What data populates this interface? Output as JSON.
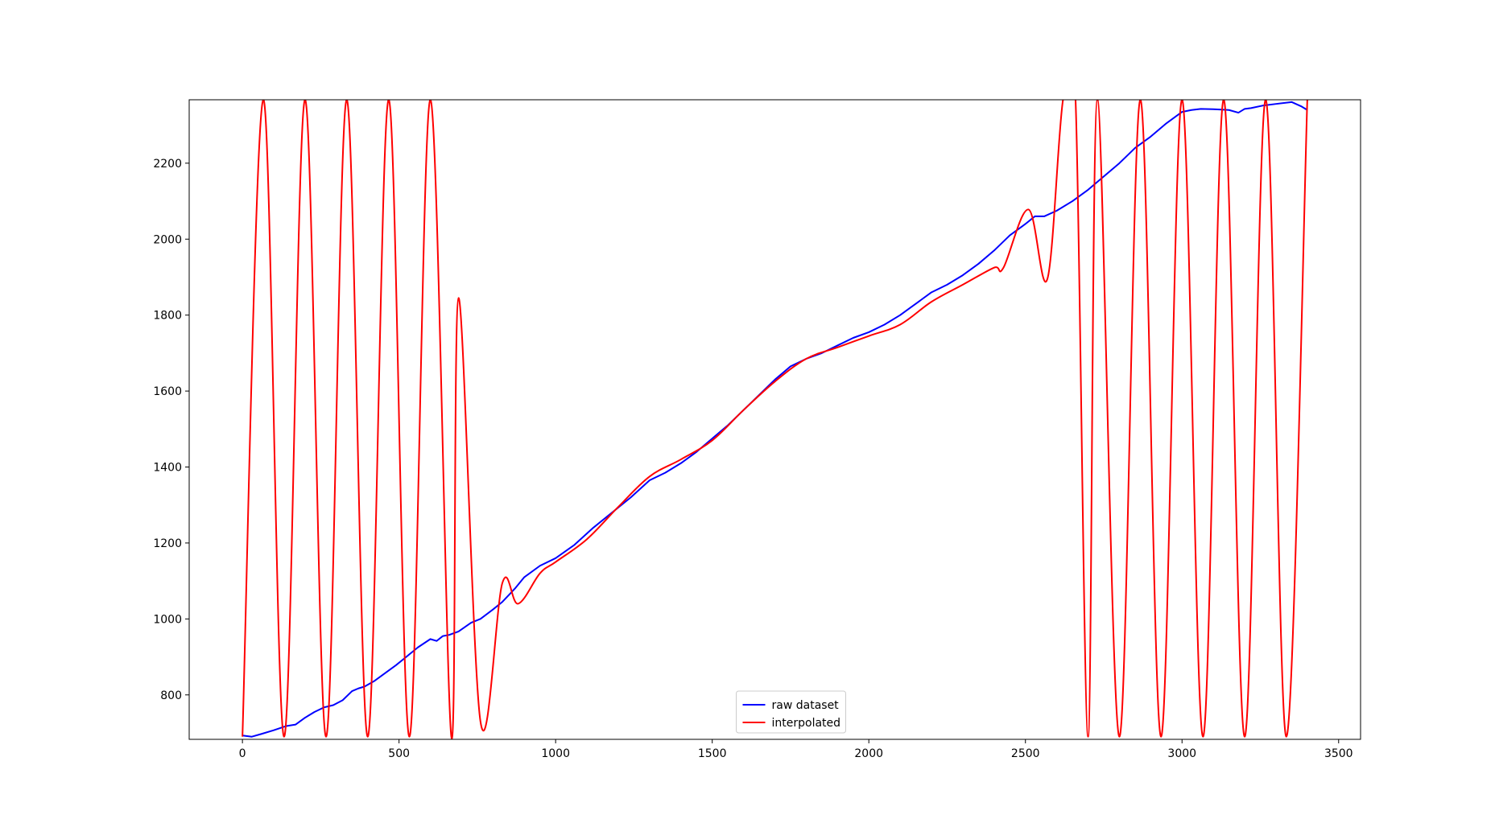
{
  "chart_data": {
    "type": "line",
    "title": "",
    "xlabel": "",
    "ylabel": "",
    "xlim": [
      -170,
      3570
    ],
    "ylim": [
      683,
      2367
    ],
    "xticks": [
      0,
      500,
      1000,
      1500,
      2000,
      2500,
      3000,
      3500
    ],
    "yticks": [
      800,
      1000,
      1200,
      1400,
      1600,
      1800,
      2000,
      2200
    ],
    "grid": false,
    "legend_position": "lower center",
    "series": [
      {
        "name": "raw dataset",
        "color": "#0000ff",
        "x": [
          0,
          30,
          60,
          100,
          140,
          170,
          200,
          230,
          260,
          290,
          320,
          350,
          370,
          390,
          420,
          460,
          490,
          520,
          560,
          600,
          620,
          640,
          660,
          690,
          730,
          760,
          800,
          830,
          870,
          900,
          950,
          1000,
          1060,
          1120,
          1180,
          1240,
          1300,
          1350,
          1400,
          1450,
          1500,
          1550,
          1600,
          1650,
          1700,
          1750,
          1800,
          1850,
          1900,
          1950,
          2000,
          2050,
          2100,
          2150,
          2200,
          2250,
          2300,
          2350,
          2400,
          2450,
          2500,
          2530,
          2560,
          2600,
          2650,
          2700,
          2750,
          2800,
          2850,
          2900,
          2950,
          3000,
          3030,
          3060,
          3100,
          3150,
          3180,
          3200,
          3220,
          3260,
          3300,
          3350,
          3380,
          3400
        ],
        "y": [
          693,
          690,
          697,
          707,
          718,
          722,
          740,
          755,
          767,
          773,
          786,
          810,
          817,
          822,
          836,
          860,
          878,
          898,
          925,
          947,
          942,
          955,
          958,
          967,
          990,
          1000,
          1025,
          1045,
          1080,
          1110,
          1140,
          1160,
          1195,
          1240,
          1280,
          1320,
          1365,
          1385,
          1410,
          1440,
          1475,
          1510,
          1550,
          1590,
          1630,
          1665,
          1685,
          1700,
          1720,
          1740,
          1755,
          1775,
          1800,
          1830,
          1860,
          1880,
          1905,
          1935,
          1970,
          2010,
          2040,
          2060,
          2060,
          2075,
          2100,
          2130,
          2165,
          2200,
          2240,
          2270,
          2305,
          2335,
          2340,
          2343,
          2342,
          2340,
          2333,
          2343,
          2345,
          2352,
          2356,
          2361,
          2350,
          2340
        ]
      },
      {
        "name": "interpolated",
        "color": "#ff0000",
        "knots_x": [
          0,
          67,
          133,
          200,
          267,
          333,
          400,
          467,
          533,
          600,
          667,
          690,
          760,
          830,
          880,
          950,
          1000,
          1100,
          1200,
          1300,
          1400,
          1500,
          1600,
          1700,
          1800,
          1900,
          2000,
          2100,
          2200,
          2300,
          2400,
          2430,
          2510,
          2570,
          2620,
          2660,
          2700,
          2730,
          2800,
          2867,
          2933,
          3000,
          3067,
          3133,
          3200,
          3267,
          3333,
          3400
        ],
        "knots_y": [
          690,
          2367,
          690,
          2367,
          690,
          2367,
          690,
          2367,
          690,
          2367,
          690,
          1845,
          730,
          1095,
          1040,
          1120,
          1150,
          1210,
          1295,
          1375,
          1420,
          1470,
          1550,
          1625,
          1685,
          1715,
          1745,
          1775,
          1835,
          1880,
          1925,
          1925,
          2078,
          1895,
          2367,
          2367,
          690,
          2367,
          690,
          2367,
          690,
          2367,
          690,
          2367,
          690,
          2367,
          690,
          2367
        ]
      }
    ]
  }
}
